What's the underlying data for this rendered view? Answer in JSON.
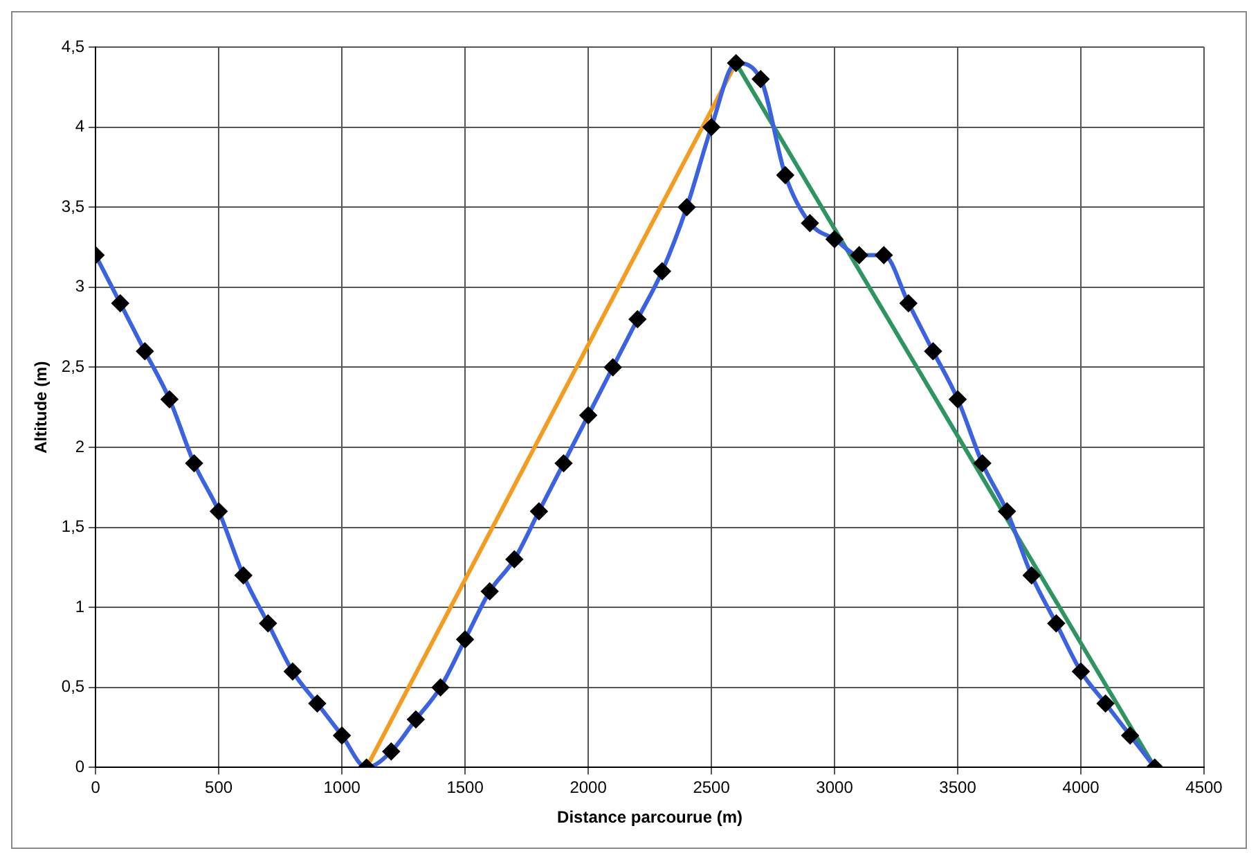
{
  "chart_data": {
    "type": "line",
    "xlabel": "Distance parcourue (m)",
    "ylabel": "Altitude (m)",
    "xlim": [
      0,
      4500
    ],
    "xticks": [
      0,
      500,
      1000,
      1500,
      2000,
      2500,
      3000,
      3500,
      4000,
      4500
    ],
    "ylim": [
      0,
      4.5
    ],
    "yticks": [
      0,
      {
        "value": 0.5,
        "label": "0,5"
      },
      1,
      {
        "value": 1.5,
        "label": "1,5"
      },
      2,
      {
        "value": 2.5,
        "label": "2,5"
      },
      3,
      {
        "value": 3.5,
        "label": "3,5"
      },
      4,
      {
        "value": 4.5,
        "label": "4,5"
      }
    ],
    "grid": true,
    "legend": false,
    "marker": "diamond",
    "series": [
      {
        "color": "#3b62e0",
        "x": [
          0,
          100,
          200,
          300,
          400,
          500,
          600,
          700,
          800,
          900,
          1000,
          1100,
          1200,
          1300,
          1400,
          1500,
          1600,
          1700,
          1800,
          1900,
          2000,
          2100,
          2200,
          2300,
          2400,
          2500,
          2600,
          2700,
          2800,
          2900,
          3000,
          3100,
          3200,
          3300,
          3400,
          3500,
          3600,
          3700,
          3800,
          3900,
          4000,
          4100,
          4200,
          4300
        ],
        "values": [
          3.2,
          2.9,
          2.6,
          2.3,
          1.9,
          1.6,
          1.2,
          0.9,
          0.6,
          0.4,
          0.2,
          0,
          0.1,
          0.3,
          0.5,
          0.8,
          1.1,
          1.3,
          1.6,
          1.9,
          2.2,
          2.5,
          2.8,
          3.1,
          3.5,
          4.0,
          4.4,
          4.3,
          3.7,
          3.4,
          3.3,
          3.2,
          3.2,
          2.9,
          2.6,
          2.3,
          1.9,
          1.6,
          1.2,
          0.9,
          0.6,
          0.4,
          0.2,
          0
        ]
      },
      {
        "color": "#f39c1f",
        "marker": "none",
        "x": [
          1100,
          2600
        ],
        "values": [
          0,
          4.4
        ]
      },
      {
        "color": "#2e9560",
        "marker": "none",
        "x": [
          2600,
          4300
        ],
        "values": [
          4.4,
          0
        ]
      }
    ]
  }
}
